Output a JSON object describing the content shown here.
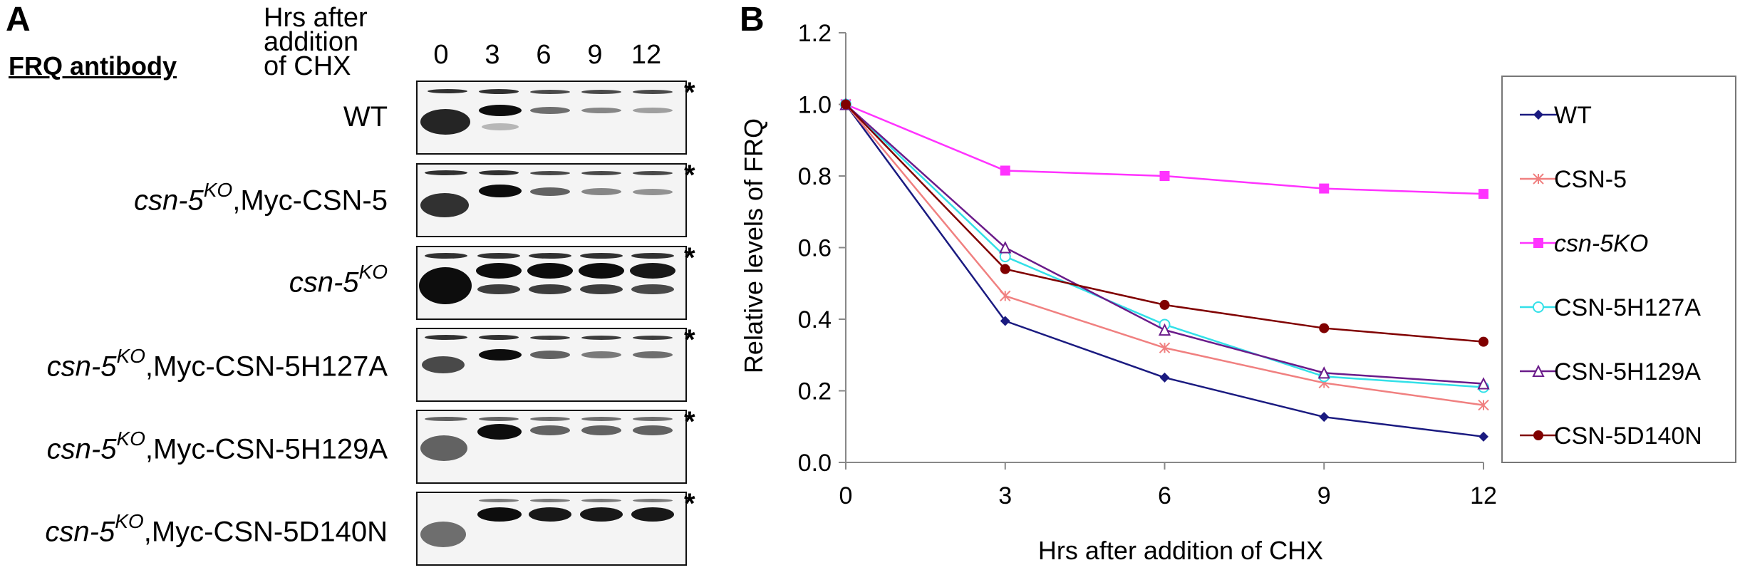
{
  "panel_a": {
    "letter": "A",
    "header_line1": "Hrs after",
    "header_line2": "addition",
    "header_line3": "of CHX",
    "antibody": "FRQ antibody",
    "lanes": [
      "0",
      "3",
      "6",
      "9",
      "12"
    ],
    "asterisk": "*",
    "rows": [
      {
        "prefix": "",
        "sup": "",
        "main": "WT",
        "main_italic": false
      },
      {
        "prefix": "csn-5",
        "sup": "KO",
        "main": ",Myc-CSN-5",
        "main_italic": false
      },
      {
        "prefix": "csn-5",
        "sup": "KO",
        "main": "",
        "main_italic": true
      },
      {
        "prefix": "csn-5",
        "sup": "KO",
        "main": ",Myc-CSN-5H127A",
        "main_italic": false
      },
      {
        "prefix": "csn-5",
        "sup": "KO",
        "main": ",Myc-CSN-5H129A",
        "main_italic": false
      },
      {
        "prefix": "csn-5",
        "sup": "KO",
        "main": ",Myc-CSN-5D140N",
        "main_italic": false
      }
    ]
  },
  "panel_b": {
    "letter": "B",
    "chart_data": {
      "type": "line",
      "xlabel": "Hrs after addition of CHX",
      "ylabel": "Relative levels of FRQ",
      "x": [
        0,
        3,
        6,
        9,
        12
      ],
      "xlim": [
        0,
        12
      ],
      "ylim": [
        0,
        1.2
      ],
      "yticks": [
        "0.0",
        "0.2",
        "0.4",
        "0.6",
        "0.8",
        "1.0",
        "1.2"
      ],
      "xticks": [
        "0",
        "3",
        "6",
        "9",
        "12"
      ],
      "grid": false,
      "legend_position": "right",
      "series": [
        {
          "name": "WT",
          "italic": false,
          "color": "#1a1a80",
          "marker": "diamond",
          "values": [
            1.0,
            0.395,
            0.237,
            0.127,
            0.072
          ]
        },
        {
          "name": "CSN-5",
          "italic": false,
          "color": "#f08080",
          "marker": "star",
          "values": [
            1.0,
            0.465,
            0.32,
            0.222,
            0.16
          ]
        },
        {
          "name": "csn-5KO",
          "italic": true,
          "color": "#ff33ff",
          "marker": "square",
          "values": [
            1.0,
            0.815,
            0.8,
            0.765,
            0.75
          ]
        },
        {
          "name": "CSN-5H127A",
          "italic": false,
          "color": "#33e0e8",
          "marker": "circle-open",
          "values": [
            1.0,
            0.575,
            0.385,
            0.24,
            0.21
          ]
        },
        {
          "name": "CSN-5H129A",
          "italic": false,
          "color": "#6a1b8a",
          "marker": "triangle-open",
          "values": [
            1.0,
            0.6,
            0.37,
            0.25,
            0.22
          ]
        },
        {
          "name": "CSN-5D140N",
          "italic": false,
          "color": "#800000",
          "marker": "dot",
          "values": [
            1.0,
            0.54,
            0.44,
            0.375,
            0.337
          ]
        }
      ]
    }
  }
}
